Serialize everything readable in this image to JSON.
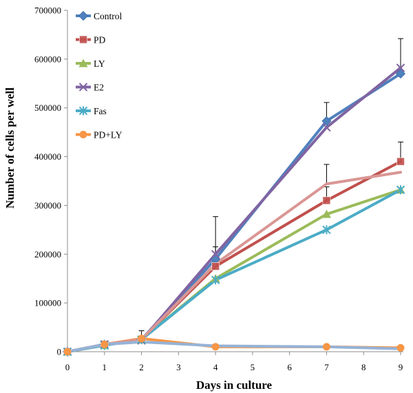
{
  "chart_data": {
    "type": "line",
    "xlabel": "Days in culture",
    "ylabel": "Number of cells per well",
    "x_ticks": [
      0,
      1,
      2,
      3,
      4,
      5,
      6,
      7,
      8,
      9
    ],
    "y_ticks": [
      0,
      100000,
      200000,
      300000,
      400000,
      500000,
      600000,
      700000
    ],
    "xlim": [
      0,
      9
    ],
    "ylim": [
      0,
      700000
    ],
    "grid": false,
    "legend_position": "top-left",
    "x": [
      0,
      1,
      2,
      4,
      7,
      9
    ],
    "series": [
      {
        "name": "Control",
        "color": "#4f81bd",
        "marker": "diamond",
        "values": [
          0,
          15000,
          25000,
          190000,
          473000,
          570000
        ],
        "error": [
          0,
          0,
          0,
          25000,
          38000,
          0
        ]
      },
      {
        "name": "PD",
        "color": "#c0504d",
        "marker": "square",
        "values": [
          0,
          15000,
          25000,
          175000,
          310000,
          390000
        ],
        "error": [
          0,
          0,
          0,
          0,
          28000,
          40000
        ]
      },
      {
        "name": "LY",
        "color": "#9bbb59",
        "marker": "triangle",
        "values": [
          0,
          13000,
          25000,
          150000,
          282000,
          332000
        ],
        "error": [
          0,
          0,
          0,
          0,
          0,
          0
        ]
      },
      {
        "name": "E2",
        "color": "#8064a2",
        "marker": "x",
        "values": [
          0,
          15000,
          23000,
          200000,
          460000,
          582000
        ],
        "error": [
          0,
          0,
          20000,
          77000,
          0,
          60000
        ]
      },
      {
        "name": "Fas",
        "color": "#4bacc6",
        "marker": "star",
        "values": [
          0,
          13000,
          25000,
          147000,
          250000,
          332000
        ],
        "error": [
          0,
          0,
          0,
          0,
          0,
          0
        ]
      },
      {
        "name": "PD+LY",
        "color": "#f79646",
        "marker": "circle",
        "values": [
          0,
          15000,
          27000,
          10000,
          10000,
          8000
        ],
        "error": [
          0,
          0,
          0,
          0,
          0,
          0
        ]
      },
      {
        "color": "#d99694",
        "marker": "none",
        "values": [
          0,
          15000,
          25000,
          180000,
          344000,
          368000
        ],
        "error": [
          0,
          0,
          0,
          0,
          40000,
          0
        ]
      },
      {
        "color": "#95b3d7",
        "marker": "none",
        "values": [
          0,
          15000,
          20000,
          12000,
          10000,
          6000
        ],
        "error": [
          0,
          0,
          0,
          0,
          0,
          0
        ]
      }
    ]
  }
}
